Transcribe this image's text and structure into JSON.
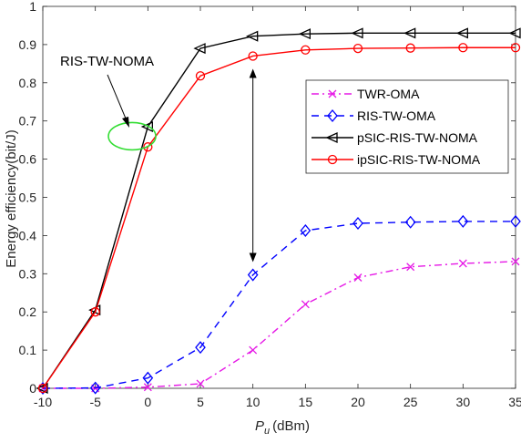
{
  "chart_data": {
    "type": "line",
    "title": "",
    "xlabel_main": "P",
    "xlabel_sub": "u",
    "xlabel_unit": "(dBm)",
    "ylabel": "Energy efficiency(bit/J)",
    "x": [
      -10,
      -5,
      0,
      5,
      10,
      15,
      20,
      25,
      30,
      35
    ],
    "xlim": [
      -10,
      35
    ],
    "ylim": [
      0,
      1
    ],
    "xticks": [
      "-10",
      "-5",
      "0",
      "5",
      "10",
      "15",
      "20",
      "25",
      "30",
      "35"
    ],
    "yticks": [
      "0",
      "0.1",
      "0.2",
      "0.3",
      "0.4",
      "0.5",
      "0.6",
      "0.7",
      "0.8",
      "0.9",
      "1"
    ],
    "grid": false,
    "legend_position": "right-middle",
    "series": [
      {
        "name": "TWR-OMA",
        "color": "#e619e6",
        "dash": "8,4,2,4",
        "marker": "x",
        "values": [
          0,
          0,
          0.003,
          0.012,
          0.1,
          0.22,
          0.29,
          0.318,
          0.327,
          0.332
        ]
      },
      {
        "name": "RIS-TW-OMA",
        "color": "#0000ff",
        "dash": "8,6",
        "marker": "diamond",
        "values": [
          0,
          0.001,
          0.027,
          0.107,
          0.297,
          0.413,
          0.432,
          0.435,
          0.437,
          0.437
        ]
      },
      {
        "name": "pSIC-RIS-TW-NOMA",
        "color": "#000000",
        "dash": "",
        "marker": "triangle-left",
        "values": [
          0,
          0.205,
          0.685,
          0.89,
          0.922,
          0.928,
          0.93,
          0.93,
          0.93,
          0.93
        ]
      },
      {
        "name": "ipSIC-RIS-TW-NOMA",
        "color": "#ff0000",
        "dash": "",
        "marker": "circle",
        "values": [
          0,
          0.2,
          0.632,
          0.818,
          0.87,
          0.886,
          0.89,
          0.891,
          0.892,
          0.892
        ]
      }
    ],
    "annotations": [
      {
        "text": "RIS-TW-NOMA",
        "type": "label-with-arrow",
        "target": [
          -1.5,
          0.66
        ],
        "ellipse_color": "#33dd33"
      },
      {
        "type": "double-arrow",
        "x": 10,
        "y_from": 0.87,
        "y_to": 0.297
      }
    ]
  }
}
